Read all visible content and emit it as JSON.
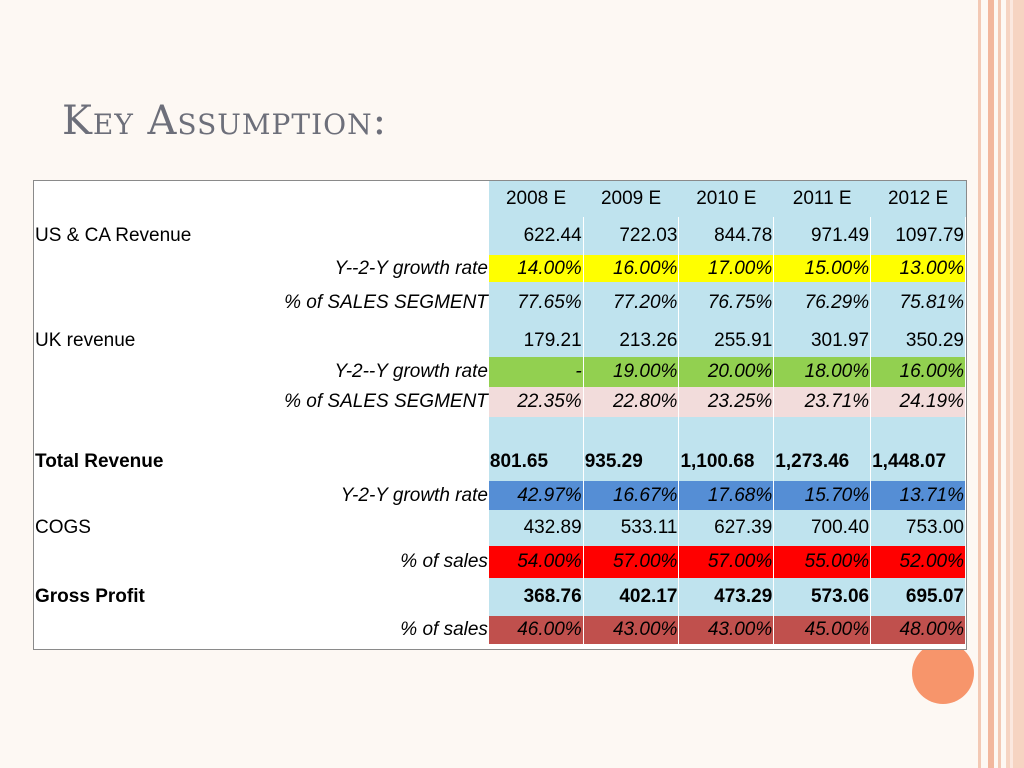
{
  "slide": {
    "title": "Key Assumption:"
  },
  "table": {
    "headers": [
      "2008 E",
      "2009 E",
      "2010 E",
      "2011 E",
      "2012 E"
    ],
    "rows": [
      {
        "label": "US & CA Revenue",
        "values": [
          "622.44",
          "722.03",
          "844.78",
          "971.49",
          "1097.79"
        ]
      },
      {
        "label": "Y--2-Y growth rate",
        "values": [
          "14.00%",
          "16.00%",
          "17.00%",
          "15.00%",
          "13.00%"
        ]
      },
      {
        "label": "% of SALES SEGMENT",
        "values": [
          "77.65%",
          "77.20%",
          "76.75%",
          "76.29%",
          "75.81%"
        ]
      },
      {
        "label": "UK revenue",
        "values": [
          "179.21",
          "213.26",
          "255.91",
          "301.97",
          "350.29"
        ]
      },
      {
        "label": "Y-2--Y growth rate",
        "values": [
          "-",
          "19.00%",
          "20.00%",
          "18.00%",
          "16.00%"
        ]
      },
      {
        "label": "% of SALES SEGMENT",
        "values": [
          "22.35%",
          "22.80%",
          "23.25%",
          "23.71%",
          "24.19%"
        ]
      },
      {
        "label": "Total Revenue",
        "values": [
          "801.65",
          "935.29",
          "1,100.68",
          "1,273.46",
          "1,448.07"
        ]
      },
      {
        "label": "Y-2-Y growth rate",
        "values": [
          "42.97%",
          "16.67%",
          "17.68%",
          "15.70%",
          "13.71%"
        ]
      },
      {
        "label": "COGS",
        "values": [
          "432.89",
          "533.11",
          "627.39",
          "700.40",
          "753.00"
        ]
      },
      {
        "label": "% of sales",
        "values": [
          "54.00%",
          "57.00%",
          "57.00%",
          "55.00%",
          "52.00%"
        ]
      },
      {
        "label": "Gross Profit",
        "values": [
          "368.76",
          "402.17",
          "473.29",
          "573.06",
          "695.07"
        ]
      },
      {
        "label": "% of sales",
        "values": [
          "46.00%",
          "43.00%",
          "43.00%",
          "45.00%",
          "48.00%"
        ]
      }
    ]
  },
  "colors": {
    "header_fill": "#bfe3ee",
    "growth_us": "#ffff00",
    "growth_uk": "#92d050",
    "segment_uk": "#f2dcdb",
    "growth_total": "#558ed5",
    "cogs_pct": "#ff0000",
    "gross_pct": "#c0504d",
    "accent_circle": "#f7956b"
  }
}
